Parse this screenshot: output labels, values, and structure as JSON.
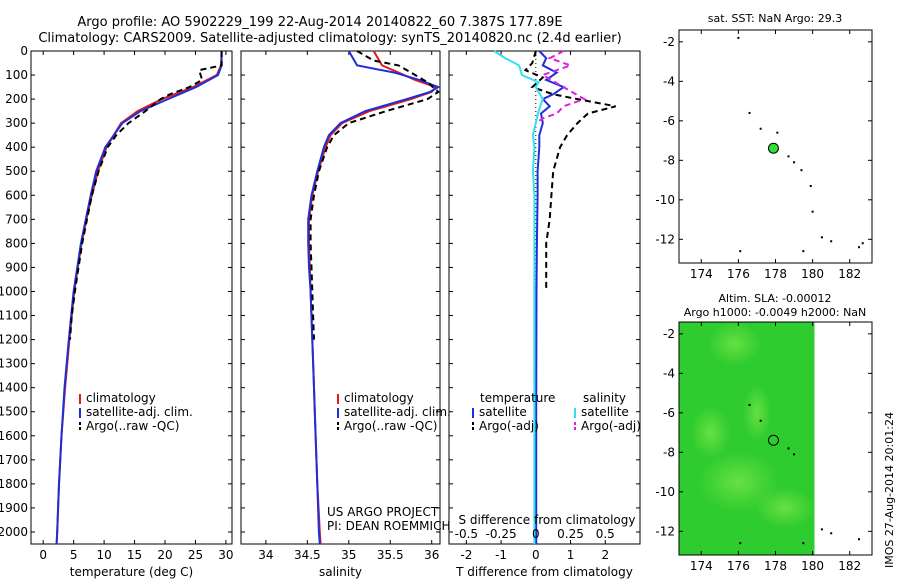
{
  "header": {
    "line1": "Argo profile: AO 5902229_199 22-Aug-2014 20140822_60 7.387S 177.89E",
    "line2": "Climatology: CARS2009. Satellite-adjusted climatology: synTS_20140820.nc (2.4d earlier)"
  },
  "colors": {
    "red": "#e31a1c",
    "blue": "#1f2fd6",
    "black": "#000000",
    "cyan": "#33e0f0",
    "magenta": "#e020e0",
    "green_dot": "#33dd33",
    "sla_bg": "#2fcc2f",
    "sla_light": "#7fe84a"
  },
  "chart_data": [
    {
      "id": "temperature",
      "type": "line",
      "xlabel": "temperature (deg C)",
      "ylabel": "",
      "xlim": [
        -2,
        31
      ],
      "ylim": [
        2050,
        0
      ],
      "x_ticks": [
        0,
        5,
        10,
        15,
        20,
        25,
        30
      ],
      "y_ticks": [
        0,
        100,
        200,
        300,
        400,
        500,
        600,
        700,
        800,
        900,
        1000,
        1100,
        1200,
        1300,
        1400,
        1500,
        1600,
        1700,
        1800,
        1900,
        2000
      ],
      "legend": [
        "climatology",
        "satellite-adj. clim.",
        "Argo(..raw -QC)"
      ],
      "series": [
        {
          "name": "climatology",
          "color": "red",
          "style": "solid",
          "depth": [
            0,
            60,
            100,
            150,
            200,
            250,
            300,
            400,
            500,
            600,
            700,
            800,
            900,
            1000,
            1200,
            1400,
            1600,
            1800,
            2000,
            2050
          ],
          "values": [
            29.3,
            29.2,
            28.5,
            24.6,
            19.5,
            15.5,
            12.8,
            10.4,
            9.0,
            8.0,
            7.1,
            6.3,
            5.7,
            5.1,
            4.3,
            3.6,
            3.0,
            2.6,
            2.3,
            2.2
          ]
        },
        {
          "name": "satellite-adj. clim.",
          "color": "blue",
          "style": "solid",
          "depth": [
            0,
            60,
            100,
            150,
            200,
            250,
            300,
            400,
            500,
            600,
            700,
            800,
            900,
            1000,
            1200,
            1400,
            1600,
            1800,
            2000,
            2050
          ],
          "values": [
            29.3,
            29.3,
            28.7,
            25.1,
            20.5,
            16.0,
            13.0,
            10.2,
            8.7,
            7.8,
            7.0,
            6.2,
            5.6,
            5.0,
            4.2,
            3.5,
            3.0,
            2.6,
            2.3,
            2.2
          ]
        },
        {
          "name": "Argo(..raw -QC)",
          "color": "black",
          "style": "dashed",
          "depth": [
            0,
            60,
            80,
            120,
            150,
            180,
            200,
            250,
            300,
            350,
            400,
            500,
            600,
            700,
            800,
            900,
            1000,
            1100,
            1200
          ],
          "values": [
            29.3,
            29.3,
            25.6,
            26.1,
            24.0,
            20.8,
            19.3,
            16.8,
            14.0,
            12.0,
            10.6,
            9.1,
            8.0,
            7.2,
            6.4,
            5.8,
            5.2,
            4.7,
            4.4
          ]
        }
      ]
    },
    {
      "id": "salinity",
      "type": "line",
      "xlabel": "salinity",
      "ylabel": "",
      "xlim": [
        33.7,
        36.1
      ],
      "ylim": [
        2050,
        0
      ],
      "x_ticks": [
        34,
        34.5,
        35,
        35.5,
        36
      ],
      "legend": [
        "climatology",
        "satellite-adj. clim.",
        "Argo(..raw -QC)"
      ],
      "annotation": [
        "US ARGO PROJECT",
        "PI: DEAN ROEMMICH"
      ],
      "series": [
        {
          "name": "climatology",
          "color": "red",
          "style": "solid",
          "depth": [
            0,
            60,
            90,
            120,
            150,
            170,
            200,
            250,
            300,
            350,
            400,
            500,
            600,
            700,
            800,
            900,
            1000,
            1200,
            1400,
            1600,
            1800,
            2000,
            2050
          ],
          "values": [
            35.3,
            35.4,
            35.6,
            35.8,
            36.05,
            36.0,
            35.75,
            35.25,
            34.92,
            34.78,
            34.72,
            34.63,
            34.56,
            34.52,
            34.52,
            34.53,
            34.54,
            34.56,
            34.58,
            34.6,
            34.62,
            34.65,
            34.66
          ]
        },
        {
          "name": "satellite-adj. clim.",
          "color": "blue",
          "style": "solid",
          "depth": [
            0,
            60,
            90,
            120,
            150,
            170,
            200,
            250,
            300,
            350,
            400,
            500,
            600,
            700,
            800,
            900,
            1000,
            1200,
            1400,
            1600,
            1800,
            2000,
            2050
          ],
          "values": [
            35.0,
            35.1,
            35.55,
            35.85,
            36.08,
            35.98,
            35.7,
            35.2,
            34.9,
            34.76,
            34.7,
            34.62,
            34.55,
            34.51,
            34.51,
            34.52,
            34.54,
            34.56,
            34.58,
            34.6,
            34.62,
            34.64,
            34.65
          ]
        },
        {
          "name": "Argo(..raw -QC)",
          "color": "black",
          "style": "dashed",
          "depth": [
            0,
            40,
            60,
            90,
            130,
            170,
            200,
            250,
            300,
            350,
            400,
            500,
            600,
            700,
            800,
            900,
            1000,
            1100,
            1200
          ],
          "values": [
            35.1,
            35.3,
            35.6,
            35.75,
            35.95,
            36.08,
            35.95,
            35.45,
            35.0,
            34.82,
            34.74,
            34.64,
            34.58,
            34.54,
            34.54,
            34.55,
            34.56,
            34.57,
            34.58
          ]
        }
      ]
    },
    {
      "id": "difference",
      "type": "line",
      "xlabel": "T difference from climatology",
      "x2label": "S difference from climatology",
      "xlim": [
        -2.5,
        3.0
      ],
      "ylim": [
        2050,
        0
      ],
      "x_ticks": [
        -2,
        -1,
        0,
        1,
        2
      ],
      "x2_ticks": [
        -0.5,
        -0.25,
        0,
        0.25,
        0.5
      ],
      "x2_tick_labels": [
        "-0.5",
        "-0.25",
        "0",
        "0.25",
        "0.5"
      ],
      "legend_headers": [
        "temperature",
        "salinity"
      ],
      "legend": [
        "satellite",
        "Argo(-adj)",
        "satellite",
        "Argo(-adj)"
      ],
      "series": [
        {
          "name": "T satellite",
          "color": "blue",
          "style": "solid",
          "depth": [
            0,
            30,
            60,
            90,
            120,
            150,
            180,
            200,
            230,
            260,
            300,
            350,
            400,
            500,
            600,
            800,
            1000,
            1500,
            2000,
            2050
          ],
          "values": [
            0.1,
            0.3,
            0.2,
            0.6,
            0.3,
            0.8,
            0.5,
            0.2,
            0.4,
            0.15,
            0.2,
            0.1,
            0.1,
            0.05,
            0.05,
            0.03,
            0.02,
            0.01,
            0.01,
            0.01
          ]
        },
        {
          "name": "T Argo(-adj)",
          "color": "black",
          "style": "dashed",
          "depth": [
            0,
            50,
            80,
            110,
            150,
            180,
            200,
            230,
            260,
            300,
            350,
            400,
            500,
            600,
            700,
            800,
            900,
            1000
          ],
          "values": [
            0.0,
            -0.1,
            -0.3,
            0.2,
            -0.1,
            0.5,
            1.2,
            2.3,
            1.5,
            1.2,
            0.9,
            0.7,
            0.5,
            0.45,
            0.4,
            0.3,
            0.3,
            0.3
          ]
        },
        {
          "name": "S satellite",
          "color": "cyan",
          "style": "solid",
          "depth": [
            0,
            30,
            60,
            100,
            130,
            150,
            200,
            250,
            300,
            350,
            400,
            500,
            600,
            800,
            1000,
            1500,
            2000,
            2050
          ],
          "values": [
            -0.3,
            -0.22,
            -0.12,
            -0.1,
            0.02,
            0.0,
            0.05,
            0.02,
            0.0,
            -0.02,
            -0.01,
            -0.02,
            -0.01,
            -0.01,
            -0.01,
            -0.01,
            -0.01,
            -0.01
          ]
        },
        {
          "name": "S Argo(-adj)",
          "color": "magenta",
          "style": "dashed",
          "depth": [
            0,
            30,
            60,
            80,
            100,
            150,
            200,
            230,
            260,
            280,
            300
          ],
          "values": [
            0.2,
            0.1,
            0.25,
            0.15,
            0.05,
            0.2,
            0.35,
            0.2,
            0.15,
            0.05,
            0.0
          ]
        }
      ]
    },
    {
      "id": "sst_map",
      "type": "scatter",
      "title": "sat. SST: NaN Argo: 29.3",
      "xlim": [
        172.8,
        183.2
      ],
      "ylim": [
        -13.2,
        -1.4
      ],
      "x_ticks": [
        174,
        176,
        178,
        180,
        182
      ],
      "y_ticks": [
        -2,
        -4,
        -6,
        -8,
        -10,
        -12
      ],
      "argo": {
        "lon": 177.89,
        "lat": -7.387
      },
      "islands": [
        [
          176.0,
          -1.8
        ],
        [
          176.6,
          -5.6
        ],
        [
          177.2,
          -6.4
        ],
        [
          178.1,
          -6.6
        ],
        [
          178.7,
          -7.8
        ],
        [
          179.0,
          -8.1
        ],
        [
          179.4,
          -8.5
        ],
        [
          179.9,
          -9.3
        ],
        [
          180.0,
          -10.6
        ],
        [
          180.5,
          -11.9
        ],
        [
          181.0,
          -12.1
        ],
        [
          179.5,
          -12.6
        ],
        [
          176.1,
          -12.6
        ],
        [
          182.5,
          -12.4
        ],
        [
          182.7,
          -12.2
        ]
      ]
    },
    {
      "id": "sla_map",
      "type": "heatmap",
      "title_line1": "Altim. SLA: -0.00012",
      "title_line2": "Argo h1000: -0.0049 h2000: NaN",
      "xlim": [
        172.8,
        183.2
      ],
      "ylim": [
        -13.2,
        -1.4
      ],
      "x_ticks": [
        174,
        176,
        178,
        180,
        182
      ],
      "y_ticks": [
        -2,
        -4,
        -6,
        -8,
        -10,
        -12
      ],
      "field_extent_lon": [
        172.8,
        180.1
      ],
      "argo": {
        "lon": 177.89,
        "lat": -7.387
      },
      "islands": [
        [
          176.6,
          -5.6
        ],
        [
          177.2,
          -6.4
        ],
        [
          178.7,
          -7.8
        ],
        [
          179.0,
          -8.1
        ],
        [
          179.5,
          -12.6
        ],
        [
          176.1,
          -12.6
        ],
        [
          180.5,
          -11.9
        ],
        [
          181.0,
          -12.1
        ],
        [
          182.5,
          -12.4
        ]
      ]
    }
  ],
  "footer": {
    "stamp": "IMOS 27-Aug-2014 20:01:24"
  }
}
